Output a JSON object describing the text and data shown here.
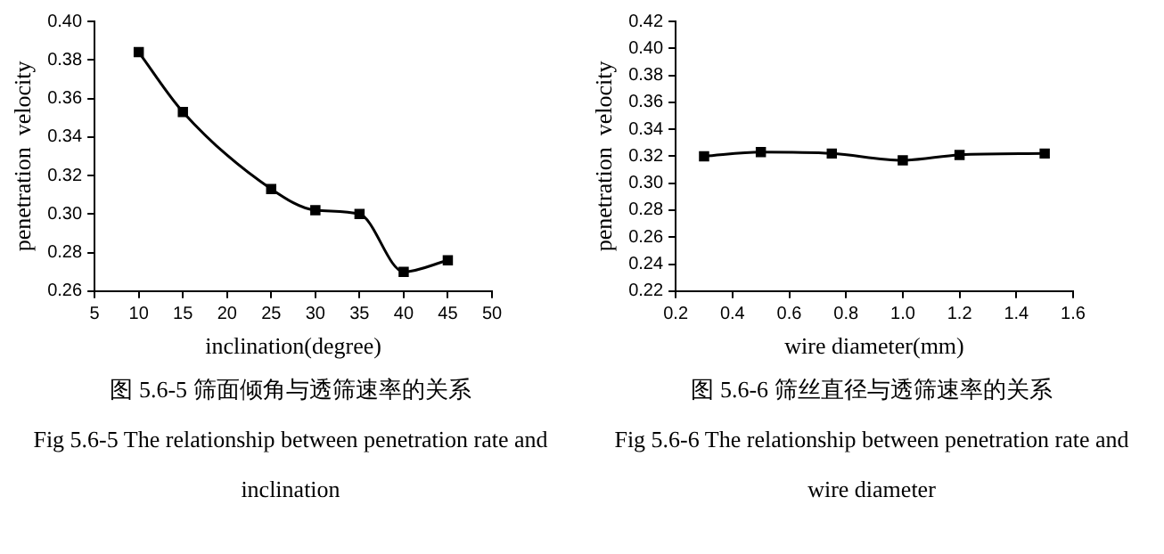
{
  "chart_data": [
    {
      "type": "line",
      "xlabel": "inclination(degree)",
      "ylabel": "penetration  velocity",
      "x": [
        10,
        15,
        25,
        30,
        35,
        40,
        45
      ],
      "series": [
        {
          "color": "#000000",
          "values": [
            0.384,
            0.353,
            0.313,
            0.302,
            0.3,
            0.27,
            0.276
          ]
        }
      ],
      "xlim": [
        5,
        50
      ],
      "xticks": [
        5,
        10,
        15,
        20,
        25,
        30,
        35,
        40,
        45,
        50
      ],
      "ylim": [
        0.26,
        0.4
      ],
      "yticks": [
        {
          "value": 0.26,
          "label": "0.26"
        },
        {
          "value": 0.28,
          "label": "0.28"
        },
        {
          "value": 0.3,
          "label": "0.30"
        },
        {
          "value": 0.32,
          "label": "0.32"
        },
        {
          "value": 0.34,
          "label": "0.34"
        },
        {
          "value": 0.36,
          "label": "0.36"
        },
        {
          "value": 0.38,
          "label": "0.38"
        },
        {
          "value": 0.4,
          "label": "0.40"
        }
      ],
      "grid": false,
      "legend": false,
      "marker": "square",
      "line_style": "solid",
      "annotations": [
        "图 5.6-5 筛面倾角与透筛速率的关系",
        "Fig 5.6-5 The relationship between penetration rate and inclination"
      ]
    },
    {
      "type": "line",
      "xlabel": "wire diameter(mm)",
      "ylabel": "penetration  velocity",
      "x": [
        0.3,
        0.5,
        0.75,
        1.0,
        1.2,
        1.5
      ],
      "series": [
        {
          "color": "#000000",
          "values": [
            0.32,
            0.323,
            0.322,
            0.317,
            0.321,
            0.322
          ]
        }
      ],
      "xlim": [
        0.2,
        1.6
      ],
      "xticks": [
        0.2,
        0.4,
        0.6,
        0.8,
        {
          "value": 1.0,
          "label": "1.0"
        },
        1.2,
        1.4,
        1.6
      ],
      "ylim": [
        0.22,
        0.42
      ],
      "yticks": [
        0.22,
        0.24,
        0.26,
        0.28,
        {
          "value": 0.3,
          "label": "0.30"
        },
        0.32,
        0.34,
        0.36,
        0.38,
        {
          "value": 0.4,
          "label": "0.40"
        },
        0.42
      ],
      "grid": false,
      "legend": false,
      "marker": "square",
      "line_style": "solid",
      "annotations": [
        "图 5.6-6 筛丝直径与透筛速率的关系",
        "Fig 5.6-6 The relationship between penetration rate and wire diameter"
      ]
    }
  ]
}
